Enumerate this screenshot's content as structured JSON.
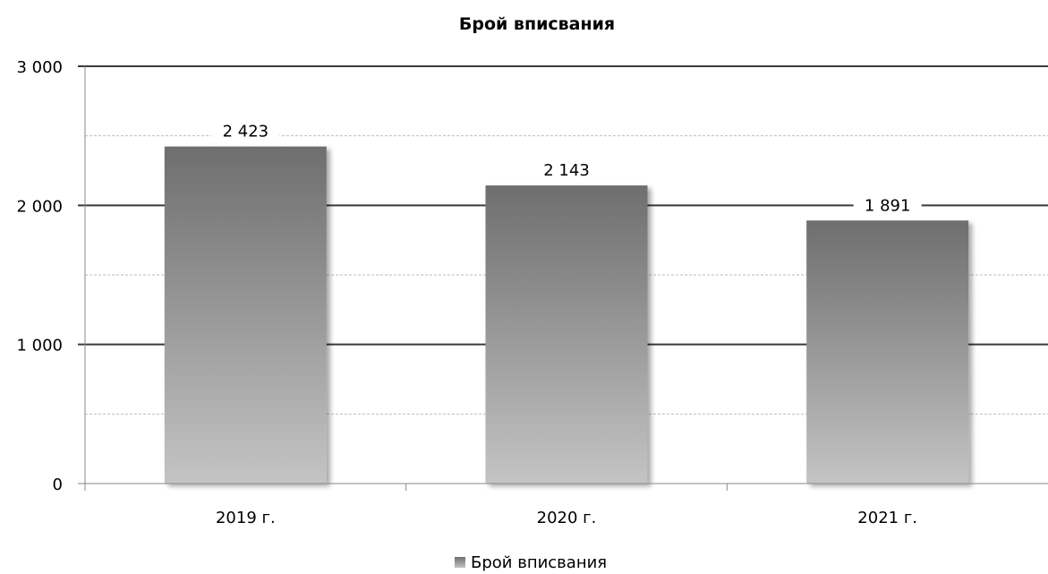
{
  "chart_data": {
    "type": "bar",
    "title": "Брой вписвания",
    "xlabel": "",
    "ylabel": "",
    "categories": [
      "2019 г.",
      "2020 г.",
      "2021 г."
    ],
    "series": [
      {
        "name": "Брой вписвания",
        "values": [
          2423,
          2143,
          1891
        ],
        "labels": [
          "2 423",
          "2 143",
          "1 891"
        ]
      }
    ],
    "ylim": [
      0,
      3000
    ],
    "y_ticks": [
      0,
      1000,
      2000,
      3000
    ],
    "y_tick_labels": [
      "0",
      "1 000",
      "2 000",
      "3 000"
    ],
    "grid": true,
    "legend_position": "bottom",
    "colors": {
      "bar_top": "#6e6e6e",
      "bar_bottom": "#c4c4c4",
      "major_grid": "#3a3a3a",
      "minor_grid": "#bdbdbd"
    }
  }
}
